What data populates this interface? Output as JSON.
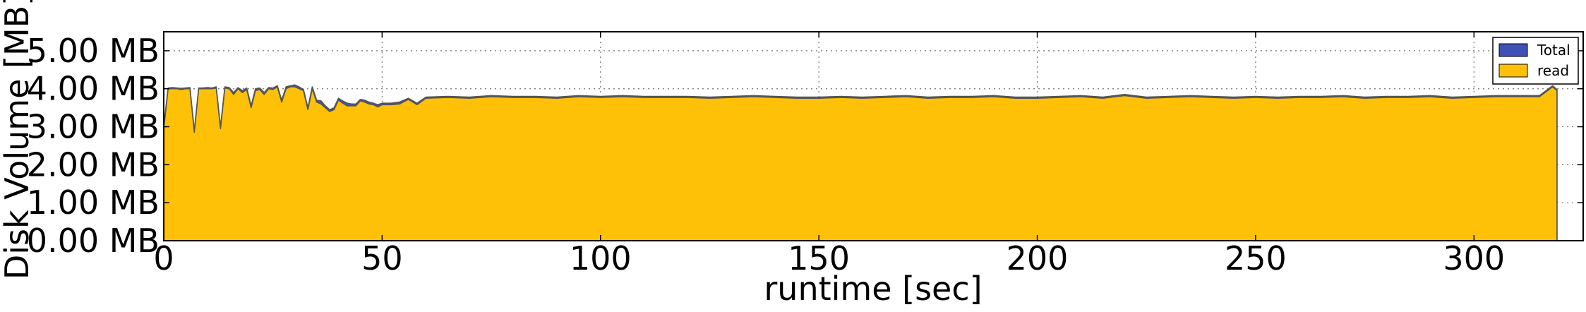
{
  "chart_data": {
    "type": "area",
    "title": "",
    "xlabel": "runtime [sec]",
    "ylabel": "Disk Volume [MB]",
    "xlim": [
      0,
      325
    ],
    "ylim": [
      0,
      5.5
    ],
    "x_ticks": [
      0,
      50,
      100,
      150,
      200,
      250,
      300
    ],
    "x_tick_labels": [
      "0",
      "50",
      "100",
      "150",
      "200",
      "250",
      "300"
    ],
    "y_ticks": [
      0,
      1,
      2,
      3,
      4,
      5
    ],
    "y_tick_labels": [
      "0.00 MB",
      "1.00 MB",
      "2.00 MB",
      "3.00 MB",
      "4.00 MB",
      "5.00 MB"
    ],
    "grid": true,
    "legend_position": "top-right",
    "series": [
      {
        "name": "Total",
        "color": "#3f51b5",
        "x": [
          0,
          1,
          2,
          3,
          4,
          5,
          6,
          7,
          8,
          9,
          10,
          11,
          12,
          13,
          14,
          15,
          16,
          17,
          18,
          19,
          20,
          21,
          22,
          23,
          24,
          25,
          26,
          27,
          28,
          29,
          30,
          31,
          32,
          33,
          34,
          35,
          36,
          37,
          38,
          39,
          40,
          41,
          42,
          43,
          44,
          45,
          46,
          47,
          48,
          49,
          50,
          52,
          54,
          56,
          58,
          60,
          65,
          70,
          75,
          80,
          85,
          90,
          95,
          100,
          105,
          110,
          115,
          120,
          125,
          130,
          135,
          140,
          145,
          150,
          155,
          160,
          165,
          170,
          175,
          180,
          185,
          190,
          195,
          200,
          205,
          210,
          215,
          220,
          225,
          230,
          235,
          240,
          245,
          250,
          255,
          260,
          265,
          270,
          275,
          280,
          285,
          290,
          295,
          300,
          305,
          310,
          315,
          318,
          319
        ],
        "values": [
          3.0,
          4.02,
          4.03,
          4.02,
          4.01,
          4.02,
          4.03,
          2.9,
          4.02,
          4.02,
          4.03,
          4.02,
          4.05,
          3.0,
          4.05,
          4.03,
          3.9,
          4.03,
          3.95,
          4.02,
          3.55,
          4.0,
          4.02,
          3.9,
          4.03,
          4.02,
          4.08,
          3.7,
          4.05,
          4.08,
          4.1,
          4.05,
          3.98,
          3.5,
          4.05,
          3.7,
          3.68,
          3.55,
          3.45,
          3.5,
          3.75,
          3.68,
          3.62,
          3.6,
          3.6,
          3.72,
          3.7,
          3.65,
          3.62,
          3.58,
          3.62,
          3.62,
          3.65,
          3.75,
          3.62,
          3.78,
          3.8,
          3.78,
          3.82,
          3.8,
          3.8,
          3.78,
          3.82,
          3.8,
          3.82,
          3.8,
          3.8,
          3.8,
          3.78,
          3.8,
          3.82,
          3.8,
          3.78,
          3.78,
          3.8,
          3.78,
          3.8,
          3.82,
          3.78,
          3.8,
          3.8,
          3.82,
          3.78,
          3.78,
          3.8,
          3.82,
          3.78,
          3.85,
          3.78,
          3.8,
          3.82,
          3.8,
          3.78,
          3.8,
          3.78,
          3.8,
          3.8,
          3.82,
          3.78,
          3.8,
          3.8,
          3.82,
          3.78,
          3.8,
          3.82,
          3.82,
          3.82,
          4.08,
          3.98
        ]
      },
      {
        "name": "read",
        "color": "#ffc107",
        "x": [
          0,
          1,
          2,
          3,
          4,
          5,
          6,
          7,
          8,
          9,
          10,
          11,
          12,
          13,
          14,
          15,
          16,
          17,
          18,
          19,
          20,
          21,
          22,
          23,
          24,
          25,
          26,
          27,
          28,
          29,
          30,
          31,
          32,
          33,
          34,
          35,
          36,
          37,
          38,
          39,
          40,
          41,
          42,
          43,
          44,
          45,
          46,
          47,
          48,
          49,
          50,
          52,
          54,
          56,
          58,
          60,
          65,
          70,
          75,
          80,
          85,
          90,
          95,
          100,
          105,
          110,
          115,
          120,
          125,
          130,
          135,
          140,
          145,
          150,
          155,
          160,
          165,
          170,
          175,
          180,
          185,
          190,
          195,
          200,
          205,
          210,
          215,
          220,
          225,
          230,
          235,
          240,
          245,
          250,
          255,
          260,
          265,
          270,
          275,
          280,
          285,
          290,
          295,
          300,
          305,
          310,
          315,
          318,
          319
        ],
        "values": [
          2.95,
          4.0,
          4.0,
          4.0,
          3.98,
          4.0,
          4.0,
          2.85,
          4.0,
          4.0,
          4.0,
          4.0,
          4.02,
          2.95,
          4.02,
          4.0,
          3.85,
          4.0,
          3.9,
          3.98,
          3.5,
          3.95,
          3.98,
          3.85,
          4.0,
          3.98,
          4.05,
          3.65,
          4.0,
          4.05,
          4.05,
          4.0,
          3.95,
          3.45,
          4.0,
          3.65,
          3.6,
          3.5,
          3.4,
          3.45,
          3.7,
          3.62,
          3.55,
          3.55,
          3.55,
          3.68,
          3.65,
          3.6,
          3.58,
          3.52,
          3.58,
          3.58,
          3.6,
          3.72,
          3.58,
          3.75,
          3.77,
          3.75,
          3.79,
          3.77,
          3.77,
          3.75,
          3.79,
          3.77,
          3.79,
          3.77,
          3.77,
          3.77,
          3.75,
          3.77,
          3.79,
          3.77,
          3.75,
          3.75,
          3.77,
          3.75,
          3.77,
          3.79,
          3.75,
          3.77,
          3.77,
          3.79,
          3.75,
          3.75,
          3.77,
          3.79,
          3.75,
          3.82,
          3.75,
          3.77,
          3.79,
          3.77,
          3.75,
          3.77,
          3.75,
          3.77,
          3.77,
          3.79,
          3.75,
          3.77,
          3.77,
          3.79,
          3.75,
          3.77,
          3.79,
          3.79,
          3.79,
          4.05,
          3.95
        ]
      }
    ]
  }
}
